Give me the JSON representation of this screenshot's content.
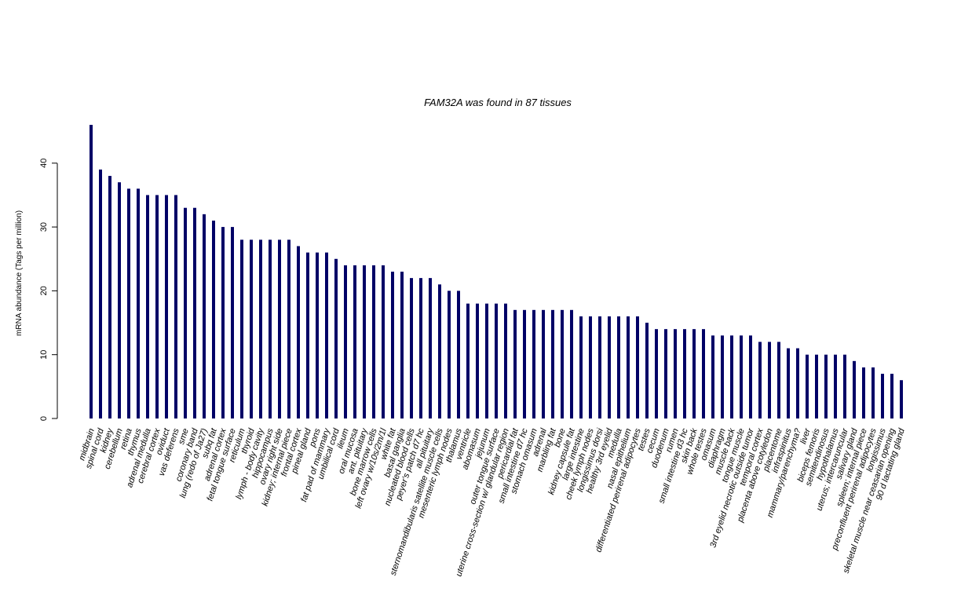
{
  "chart_data": {
    "type": "bar",
    "title": "FAM32A  was found in  87  tissues",
    "ylabel": "mRNA abundance (Tags per million)",
    "xlabel": "",
    "ylim": [
      0,
      46
    ],
    "yticks": [
      0,
      10,
      20,
      30,
      40
    ],
    "bar_color": "#000066",
    "grid": false,
    "categories": [
      "midbrain",
      "spinal cord",
      "kidney",
      "cerebellum",
      "retina",
      "thymus",
      "adrenal medulla",
      "cerebral cortex",
      "oviduct",
      "vas deferens",
      "sme",
      "coronary band",
      "lung (redo of Ja27)",
      "subq fat",
      "adrenal cortex",
      "fetal tongue surface",
      "reticulum",
      "thyroid",
      "lymph - body cavity",
      "hippocampus",
      "ovary right side",
      "kidney; internal piece",
      "frontal cortex",
      "pineal gland",
      "pons",
      "fat pad of mammary",
      "umbilical cord",
      "ileum",
      "oral mucosa",
      "ant. pituitary",
      "bone marrow cells",
      "left ovary w/10s/2m/1l",
      "white fat",
      "basal ganglia",
      "nucleated blood cells",
      "peyer's patch d7 hc",
      "all pituitary",
      "sternomandibularis satellite muscle cells",
      "mesenteric lymph nodes",
      "thalamus",
      "ventricle",
      "abomasum",
      "jejunum",
      "outer tongue surface",
      "uterine cross-section w/ glandular region",
      "pericardial fat",
      "small intestine d7 hc",
      "stomach omasum",
      "adrenal",
      "marbling fat",
      "bone",
      "kidney capsule fat",
      "large intestine",
      "cheek lymph nodes",
      "longissimus dorsi",
      "healthy 3rd eyelid",
      "medulla",
      "nasal epithelium",
      "differentiated perirenal adipocytes",
      "testes",
      "cecum",
      "duodenum",
      "rumen",
      "small intestine d3 hc",
      "skin back",
      "whole testes",
      "omasum",
      "diaphragm",
      "muscle back",
      "tongue muscle",
      "3rd eyelid necrotic outside tumor",
      "temporal cortex",
      "placenta above cotyledon",
      "placentome",
      "infraspinitus",
      "mammary/parenchyma?",
      "liver",
      "biceps femoris",
      "semitendinosus",
      "hypothalamus",
      "uterus; intercaruncular",
      "salivary gland",
      "spleen; internal piece",
      "preconfluent perirenal adipocytes",
      "longissimus",
      "skeletal muscle near ceasarian opening",
      "90 d lactating gland"
    ],
    "values": [
      46,
      39,
      38,
      37,
      36,
      36,
      35,
      35,
      35,
      35,
      33,
      33,
      32,
      31,
      30,
      30,
      28,
      28,
      28,
      28,
      28,
      28,
      27,
      26,
      26,
      26,
      25,
      24,
      24,
      24,
      24,
      24,
      23,
      23,
      22,
      22,
      22,
      21,
      20,
      20,
      18,
      18,
      18,
      18,
      18,
      17,
      17,
      17,
      17,
      17,
      17,
      17,
      16,
      16,
      16,
      16,
      16,
      16,
      16,
      15,
      14,
      14,
      14,
      14,
      14,
      14,
      13,
      13,
      13,
      13,
      13,
      12,
      12,
      12,
      11,
      11,
      10,
      10,
      10,
      10,
      10,
      9,
      8,
      8,
      7,
      7,
      6
    ]
  }
}
